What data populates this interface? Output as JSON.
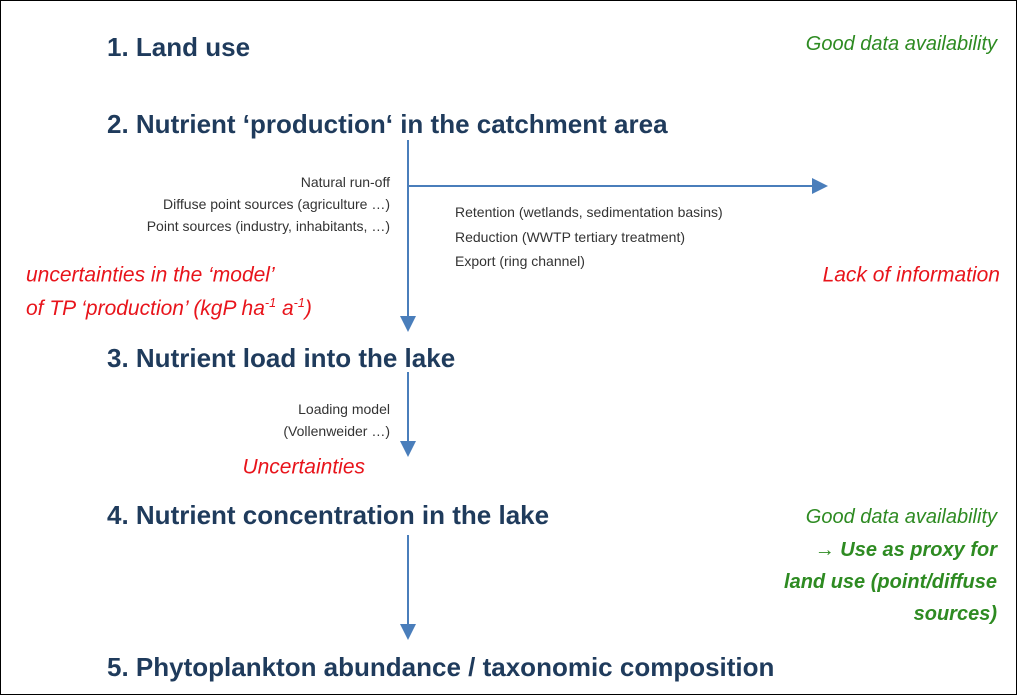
{
  "headings": [
    "1. Land use",
    "2. Nutrient ‘production‘ in the catchment area",
    "3. Nutrient load into the lake",
    "4. Nutrient concentration in the lake",
    "5. Phytoplankton abundance / taxonomic composition"
  ],
  "land_use_note": "Good data availability",
  "sources": [
    "Natural run-off",
    "Diffuse point sources (agriculture …)",
    "Point sources (industry, inhabitants, …)"
  ],
  "losses": [
    "Retention (wetlands, sedimentation basins)",
    "Reduction (WWTP tertiary treatment)",
    "Export (ring channel)"
  ],
  "model_uncertainty": {
    "line1": "uncertainties in the ‘model’",
    "line2": "of TP ‘production’ (kgP ha",
    "sup1": "-1",
    "mid": " a",
    "sup2": "-1",
    "end": ")"
  },
  "lack_note": "Lack of information",
  "loading": [
    "Loading model",
    "(Vollenweider …)"
  ],
  "loading_uncertainty": "Uncertainties",
  "concentration_note": {
    "line1": "Good data availability",
    "arrow": "→",
    "line2": " Use as proxy for",
    "line3": "land use (point/diffuse",
    "line4": "sources)"
  }
}
